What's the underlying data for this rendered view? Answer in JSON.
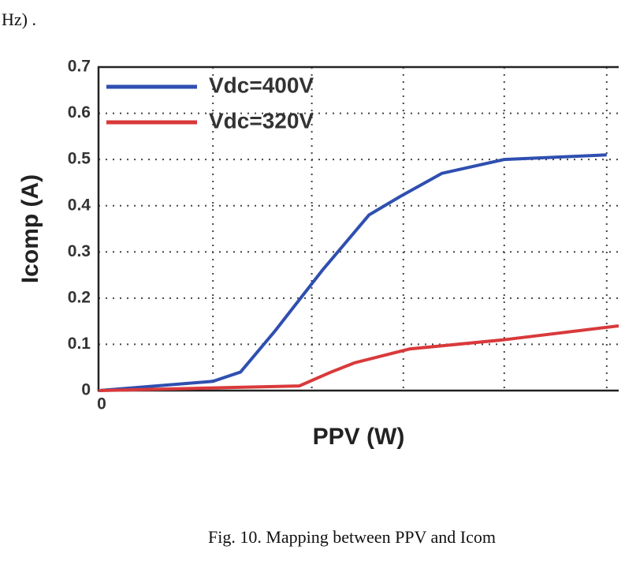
{
  "text_fragment": "Hz) .",
  "caption": "Fig. 10. Mapping between PPV and Icom",
  "chart_data": {
    "type": "line",
    "xlabel": "PPV (W)",
    "ylabel": "Icomp (A)",
    "xlim": [
      0,
      10
    ],
    "ylim": [
      0,
      0.7
    ],
    "xticks": [
      0,
      {
        "value": 2.2,
        "label": null
      },
      {
        "value": 4.1,
        "label": null
      },
      {
        "value": 5.86,
        "label": null
      },
      {
        "value": 7.8,
        "label": null
      },
      {
        "value": 9.77,
        "label": null
      }
    ],
    "yticks": [
      0,
      0.1,
      0.2,
      0.3,
      0.4,
      0.5,
      0.6,
      0.7
    ],
    "grid": true,
    "legend": "upper left",
    "series": [
      {
        "name": "Vdc=400V",
        "color": "#2f4fb0",
        "x": [
          0,
          2.2,
          2.73,
          3.4,
          4.3,
          5.2,
          5.8,
          6.6,
          7.8,
          9.77
        ],
        "values": [
          0,
          0.02,
          0.04,
          0.13,
          0.26,
          0.38,
          0.42,
          0.47,
          0.5,
          0.51
        ]
      },
      {
        "name": "Vdc=320V",
        "color": "#d9393b",
        "x": [
          0,
          3.86,
          4.47,
          4.92,
          5.98,
          7.8,
          10
        ],
        "values": [
          0,
          0.01,
          0.04,
          0.06,
          0.09,
          0.11,
          0.14
        ]
      }
    ]
  }
}
